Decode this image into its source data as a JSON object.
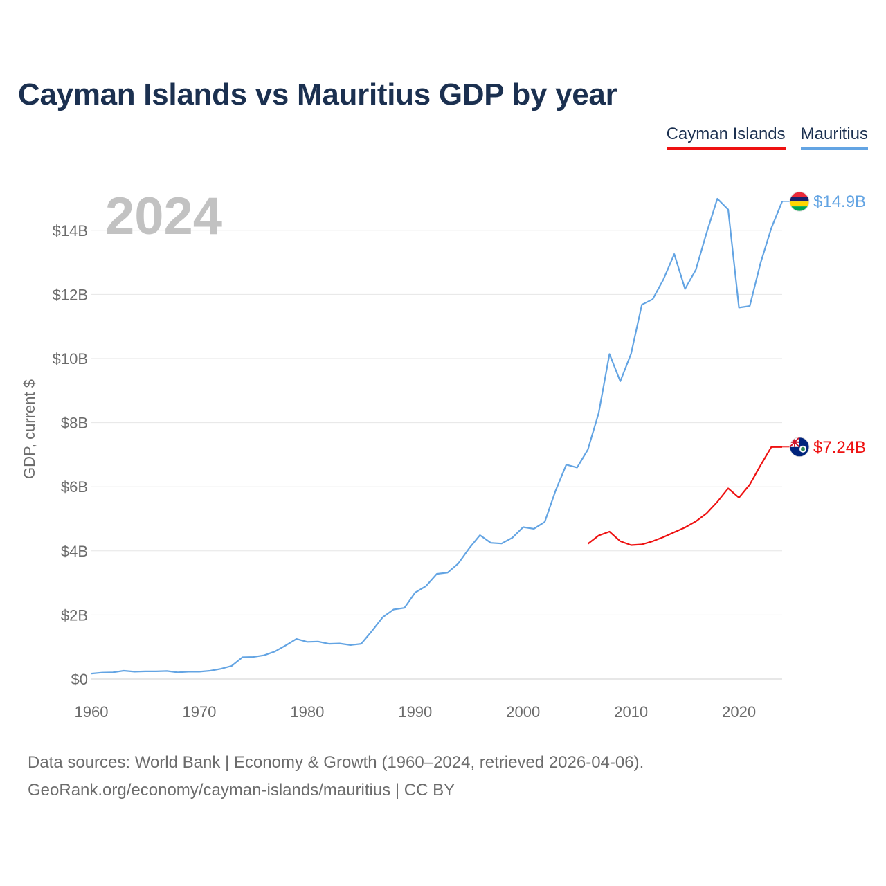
{
  "chart_data": {
    "type": "line",
    "title": "Cayman Islands vs Mauritius GDP by year",
    "ylabel": "GDP, current $",
    "xlabel": "",
    "year_label": "2024",
    "xlim": [
      1960,
      2024
    ],
    "ylim": [
      0,
      16
    ],
    "y_unit": "billion US$",
    "x_ticks": [
      1960,
      1970,
      1980,
      1990,
      2000,
      2010,
      2020
    ],
    "y_ticks": [
      {
        "value": 0,
        "label": "$0"
      },
      {
        "value": 2,
        "label": "$2B"
      },
      {
        "value": 4,
        "label": "$4B"
      },
      {
        "value": 6,
        "label": "$6B"
      },
      {
        "value": 8,
        "label": "$8B"
      },
      {
        "value": 10,
        "label": "$10B"
      },
      {
        "value": 12,
        "label": "$12B"
      },
      {
        "value": 14,
        "label": "$14B"
      }
    ],
    "series": [
      {
        "name": "Cayman Islands",
        "color": "#ee1111",
        "end_label": "$7.24B",
        "flag": "cayman-islands-flag-icon",
        "x": [
          2006,
          2007,
          2008,
          2009,
          2010,
          2011,
          2012,
          2013,
          2014,
          2015,
          2016,
          2017,
          2018,
          2019,
          2020,
          2021,
          2022,
          2023,
          2024
        ],
        "values": [
          4.22,
          4.48,
          4.6,
          4.3,
          4.18,
          4.2,
          4.3,
          4.43,
          4.58,
          4.73,
          4.92,
          5.17,
          5.53,
          5.95,
          5.66,
          6.07,
          6.67,
          7.24,
          7.24
        ]
      },
      {
        "name": "Mauritius",
        "color": "#63a4e3",
        "end_label": "$14.9B",
        "flag": "mauritius-flag-icon",
        "x": [
          1960,
          1961,
          1962,
          1963,
          1964,
          1965,
          1966,
          1967,
          1968,
          1969,
          1970,
          1971,
          1972,
          1973,
          1974,
          1975,
          1976,
          1977,
          1978,
          1979,
          1980,
          1981,
          1982,
          1983,
          1984,
          1985,
          1986,
          1987,
          1988,
          1989,
          1990,
          1991,
          1992,
          1993,
          1994,
          1995,
          1996,
          1997,
          1998,
          1999,
          2000,
          2001,
          2002,
          2003,
          2004,
          2005,
          2006,
          2007,
          2008,
          2009,
          2010,
          2011,
          2012,
          2013,
          2014,
          2015,
          2016,
          2017,
          2018,
          2019,
          2020,
          2021,
          2022,
          2023,
          2024
        ],
        "values": [
          0.17,
          0.2,
          0.21,
          0.26,
          0.23,
          0.24,
          0.24,
          0.25,
          0.21,
          0.23,
          0.23,
          0.26,
          0.32,
          0.41,
          0.68,
          0.69,
          0.74,
          0.86,
          1.05,
          1.25,
          1.16,
          1.17,
          1.1,
          1.11,
          1.06,
          1.1,
          1.5,
          1.93,
          2.17,
          2.22,
          2.7,
          2.9,
          3.28,
          3.32,
          3.61,
          4.08,
          4.49,
          4.25,
          4.23,
          4.41,
          4.74,
          4.69,
          4.9,
          5.87,
          6.69,
          6.6,
          7.16,
          8.3,
          10.14,
          9.29,
          10.15,
          11.68,
          11.85,
          12.47,
          13.26,
          12.17,
          12.77,
          13.92,
          14.99,
          14.65,
          11.59,
          11.64,
          12.98,
          14.07,
          14.9
        ]
      }
    ]
  },
  "legend": {
    "cayman": "Cayman Islands",
    "mauritius": "Mauritius"
  },
  "footer": {
    "line1": "Data sources: World Bank | Economy & Growth (1960–2024, retrieved 2026-04-06).",
    "line2": "GeoRank.org/economy/cayman-islands/mauritius | CC BY"
  }
}
